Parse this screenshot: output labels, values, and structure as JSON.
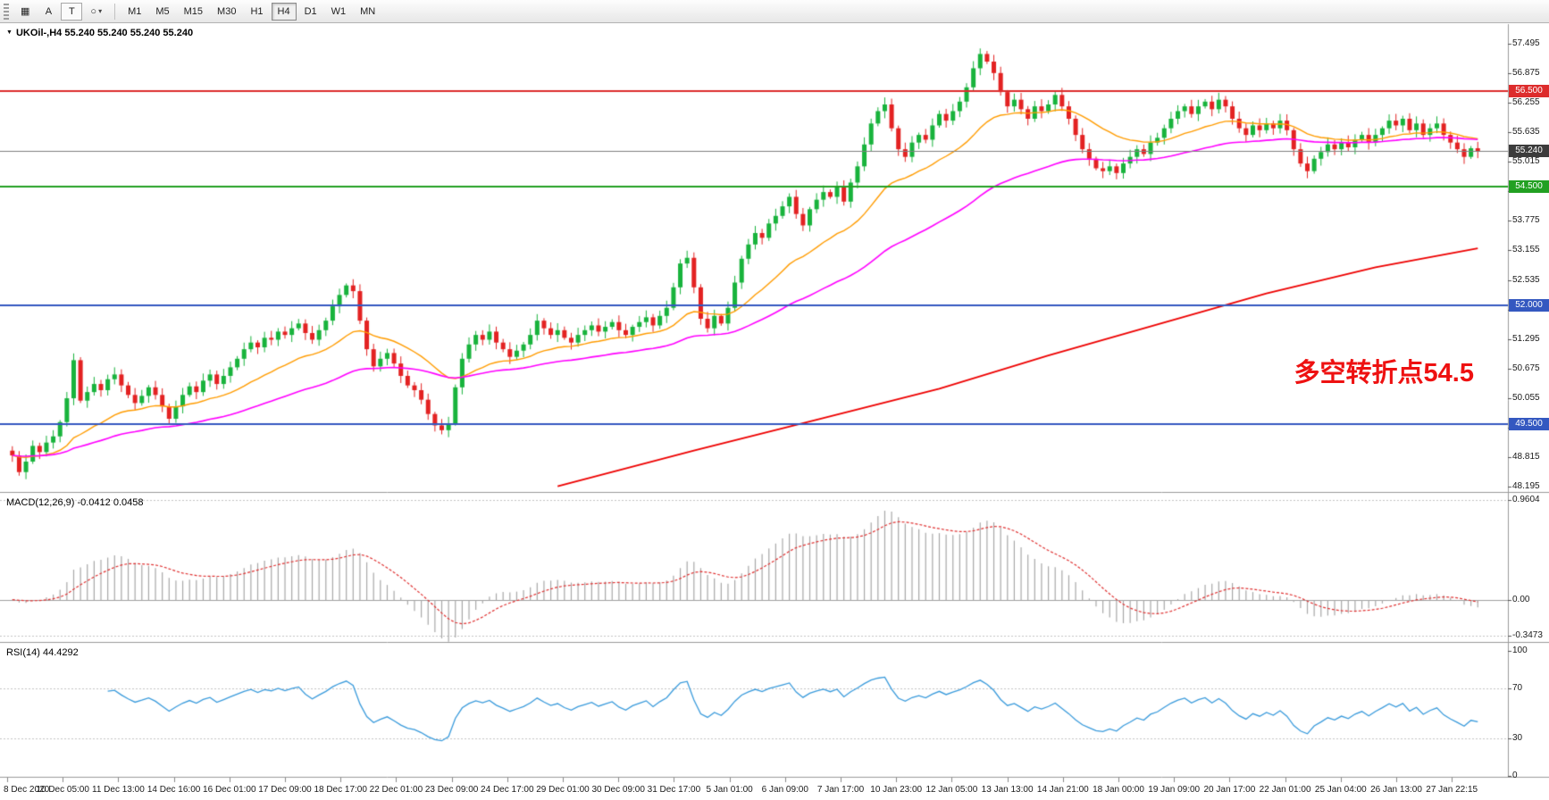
{
  "toolbar": {
    "grid_tool": "▦",
    "text_tool": "A",
    "label_tool": "T",
    "shape_tool": "○",
    "shape_dropdown": "▾",
    "timeframes": [
      "M1",
      "M5",
      "M15",
      "M30",
      "H1",
      "H4",
      "D1",
      "W1",
      "MN"
    ],
    "active_timeframe": "H4"
  },
  "chart_data": {
    "type": "candlestick",
    "symbol": "UKOil-",
    "timeframe": "H4",
    "title": "UKOil-,H4 55.240 55.240 55.240 55.240",
    "current_price": 55.24,
    "price_axis_ticks": [
      "57.495",
      "56.875",
      "56.255",
      "55.635",
      "55.015",
      "54.395",
      "53.775",
      "53.155",
      "52.535",
      "51.915",
      "51.295",
      "50.675",
      "50.055",
      "49.435",
      "48.815",
      "48.195"
    ],
    "levels": [
      {
        "value": 56.5,
        "label": "56.500",
        "color": "#dd2c2c",
        "badge_bg": "#dd2c2c",
        "line_width": 2
      },
      {
        "value": 55.24,
        "label": "55.240",
        "color": "#808080",
        "badge_bg": "#3c3c3c",
        "line_width": 1
      },
      {
        "value": 54.5,
        "label": "54.500",
        "color": "#22a022",
        "badge_bg": "#22a022",
        "line_width": 2
      },
      {
        "value": 52.0,
        "label": "52.000",
        "color": "#3458c0",
        "badge_bg": "#3458c0",
        "line_width": 2
      },
      {
        "value": 49.5,
        "label": "49.500",
        "color": "#3458c0",
        "badge_bg": "#3458c0",
        "line_width": 2
      }
    ],
    "candles": {
      "first_open": 48.95,
      "closes": [
        48.85,
        48.5,
        48.72,
        49.05,
        48.92,
        49.12,
        49.25,
        49.55,
        50.05,
        50.85,
        50.0,
        50.18,
        50.35,
        50.22,
        50.45,
        50.55,
        50.32,
        50.12,
        49.95,
        50.1,
        50.28,
        50.12,
        49.88,
        49.62,
        49.88,
        50.12,
        50.3,
        50.18,
        50.42,
        50.55,
        50.35,
        50.52,
        50.7,
        50.88,
        51.08,
        51.22,
        51.12,
        51.32,
        51.28,
        51.45,
        51.38,
        51.52,
        51.62,
        51.42,
        51.28,
        51.48,
        51.68,
        51.98,
        52.22,
        52.42,
        52.3,
        51.68,
        51.08,
        50.72,
        50.88,
        51.0,
        50.78,
        50.52,
        50.32,
        50.22,
        50.02,
        49.72,
        49.48,
        49.38,
        49.52,
        50.28,
        50.88,
        51.18,
        51.38,
        51.28,
        51.45,
        51.22,
        51.08,
        50.92,
        51.05,
        51.18,
        51.38,
        51.68,
        51.52,
        51.38,
        51.48,
        51.32,
        51.22,
        51.38,
        51.48,
        51.58,
        51.45,
        51.55,
        51.65,
        51.48,
        51.38,
        51.55,
        51.65,
        51.75,
        51.58,
        51.78,
        51.95,
        52.38,
        52.88,
        53.0,
        52.38,
        51.72,
        51.52,
        51.78,
        51.62,
        51.95,
        52.48,
        52.98,
        53.28,
        53.52,
        53.42,
        53.72,
        53.88,
        54.08,
        54.28,
        53.92,
        53.68,
        54.02,
        54.22,
        54.38,
        54.28,
        54.48,
        54.18,
        54.58,
        54.92,
        55.38,
        55.82,
        56.08,
        56.22,
        55.72,
        55.28,
        55.12,
        55.42,
        55.58,
        55.48,
        55.78,
        56.02,
        55.88,
        56.08,
        56.28,
        56.58,
        56.98,
        57.28,
        57.12,
        56.88,
        56.48,
        56.18,
        56.32,
        56.12,
        55.92,
        56.18,
        56.08,
        56.22,
        56.42,
        56.18,
        55.92,
        55.58,
        55.28,
        55.08,
        54.88,
        54.82,
        54.92,
        54.78,
        54.98,
        55.12,
        55.28,
        55.18,
        55.42,
        55.52,
        55.72,
        55.92,
        56.08,
        56.18,
        56.02,
        56.18,
        56.28,
        56.12,
        56.32,
        56.18,
        55.92,
        55.72,
        55.58,
        55.78,
        55.68,
        55.82,
        55.72,
        55.88,
        55.68,
        55.28,
        54.98,
        54.82,
        55.08,
        55.22,
        55.38,
        55.28,
        55.42,
        55.32,
        55.48,
        55.58,
        55.42,
        55.58,
        55.72,
        55.88,
        55.78,
        55.92,
        55.68,
        55.82,
        55.58,
        55.72,
        55.82,
        55.58,
        55.42,
        55.28,
        55.12,
        55.3,
        55.24
      ]
    },
    "overlays": [
      {
        "name": "ma-fast",
        "type": "ema",
        "period": 21,
        "color": "#ff9c00",
        "width": 1.4
      },
      {
        "name": "ma-medium",
        "type": "ema",
        "period": 55,
        "color": "#ff00ff",
        "width": 1.6
      },
      {
        "name": "ma-slow",
        "type": "anchors",
        "color": "#ee0000",
        "width": 1.8,
        "points": [
          [
            80,
            48.2
          ],
          [
            100,
            48.95
          ],
          [
            118,
            49.6
          ],
          [
            136,
            50.25
          ],
          [
            152,
            50.95
          ],
          [
            168,
            51.6
          ],
          [
            184,
            52.25
          ],
          [
            200,
            52.8
          ],
          [
            215,
            53.2
          ]
        ]
      }
    ],
    "macd": {
      "display": "MACD(12,26,9) -0.0412 0.0458",
      "fast": 12,
      "slow": 26,
      "signal": 9,
      "axis_ticks": [
        "0.9604",
        "0.00",
        "-0.3473"
      ],
      "axis_values": [
        0.9604,
        0,
        -0.3473
      ]
    },
    "rsi": {
      "display": "RSI(14) 44.4292",
      "period": 14,
      "axis_ticks": [
        "100",
        "70",
        "30",
        "0"
      ],
      "axis_values": [
        100,
        70,
        30,
        0
      ],
      "levels": [
        70,
        30
      ]
    },
    "time_labels": [
      "8 Dec 2020",
      "10 Dec 05:00",
      "11 Dec 13:00",
      "14 Dec 16:00",
      "16 Dec 01:00",
      "17 Dec 09:00",
      "18 Dec 17:00",
      "22 Dec 01:00",
      "23 Dec 09:00",
      "24 Dec 17:00",
      "29 Dec 01:00",
      "30 Dec 09:00",
      "31 Dec 17:00",
      "5 Jan 01:00",
      "6 Jan 09:00",
      "7 Jan 17:00",
      "10 Jan 23:00",
      "12 Jan 05:00",
      "13 Jan 13:00",
      "14 Jan 21:00",
      "18 Jan 00:00",
      "19 Jan 09:00",
      "20 Jan 17:00",
      "22 Jan 01:00",
      "25 Jan 04:00",
      "26 Jan 13:00",
      "27 Jan 22:15"
    ],
    "annotation": {
      "text": "多空转折点54.5",
      "color": "#ee1111"
    },
    "colors": {
      "up": "#18b33c",
      "down": "#e32222",
      "wick_up": "#18b33c",
      "wick_down": "#e32222",
      "macd_hist": "#a8a8a8",
      "macd_signal": "#e03232",
      "rsi_line": "#3a9bdc",
      "grid": "#c4c4c4",
      "separator": "#9a9a9a"
    }
  }
}
